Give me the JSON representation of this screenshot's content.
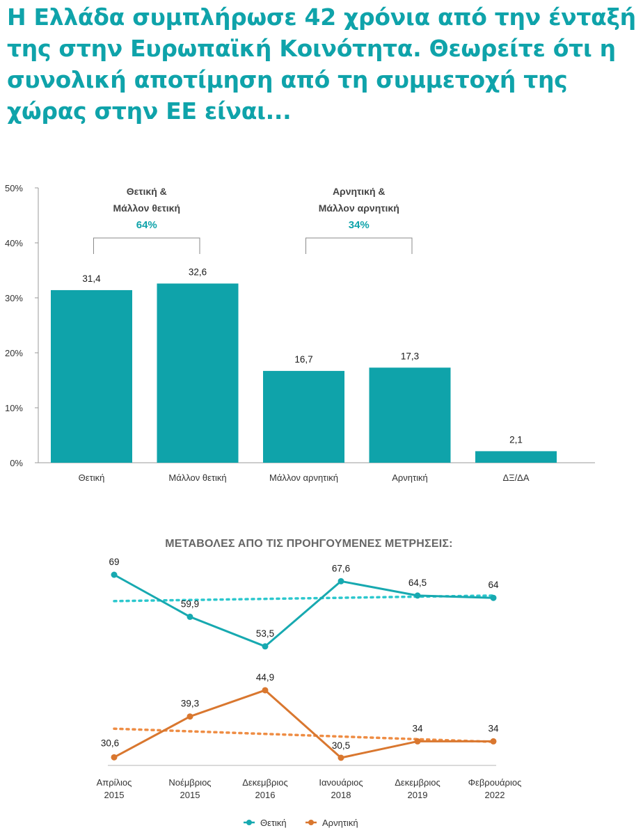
{
  "title": "Η Ελλάδα συμπλήρωσε 42 χρόνια από την ένταξή της στην Ευρωπαϊκή Κοινότητα. Θεωρείτε ότι η συνολική αποτίμηση από τη συμμετοχή της χώρας στην ΕΕ είναι...",
  "colors": {
    "accent": "#0fa3aa",
    "positive": "#17a9b0",
    "negative": "#d9772f",
    "positive_trend": "#2bc7cd",
    "negative_trend": "#ee8c43"
  },
  "chart_data": [
    {
      "type": "bar",
      "categories": [
        "Θετική",
        "Μάλλον θετική",
        "Μάλλον αρνητική",
        "Αρνητική",
        "ΔΞ/ΔΑ"
      ],
      "values": [
        31.4,
        32.6,
        16.7,
        17.3,
        2.1
      ],
      "value_labels": [
        "31,4",
        "32,6",
        "16,7",
        "17,3",
        "2,1"
      ],
      "yticks": [
        "0%",
        "10%",
        "20%",
        "30%",
        "40%",
        "50%"
      ],
      "ylim": [
        0,
        50
      ],
      "groups": [
        {
          "line1": "Θετική &",
          "line2": "Μάλλον θετική",
          "pct": "64%",
          "from": 0,
          "to": 1
        },
        {
          "line1": "Αρνητική &",
          "line2": "Μάλλον αρνητική",
          "pct": "34%",
          "from": 2,
          "to": 3
        }
      ]
    },
    {
      "type": "line",
      "title": "ΜΕΤΑΒΟΛΕΣ ΑΠΟ ΤΙΣ ΠΡΟΗΓΟΥΜΕΝΕΣ ΜΕΤΡΗΣΕΙΣ:",
      "x": [
        {
          "month": "Απρίλιος",
          "year": "2015"
        },
        {
          "month": "Νοέμβριος",
          "year": "2015"
        },
        {
          "month": "Δεκεμβριος",
          "year": "2016"
        },
        {
          "month": "Ιανουάριος",
          "year": "2018"
        },
        {
          "month": "Δεκεμβριος",
          "year": "2019"
        },
        {
          "month": "Φεβρουάριος",
          "year": "2022"
        }
      ],
      "series": [
        {
          "name": "Θετική",
          "values": [
            69,
            59.9,
            53.5,
            67.6,
            64.5,
            64
          ],
          "labels": [
            "69",
            "59,9",
            "53,5",
            "67,6",
            "64,5",
            "64"
          ],
          "trend": [
            63.3,
            64.5
          ]
        },
        {
          "name": "Αρνητική",
          "values": [
            30.6,
            39.3,
            44.9,
            30.5,
            34,
            34
          ],
          "labels": [
            "30,6",
            "39,3",
            "44,9",
            "30,5",
            "34",
            "34"
          ],
          "trend": [
            36.7,
            33.9
          ]
        }
      ],
      "legend": [
        "Θετική",
        "Αρνητική"
      ]
    }
  ]
}
